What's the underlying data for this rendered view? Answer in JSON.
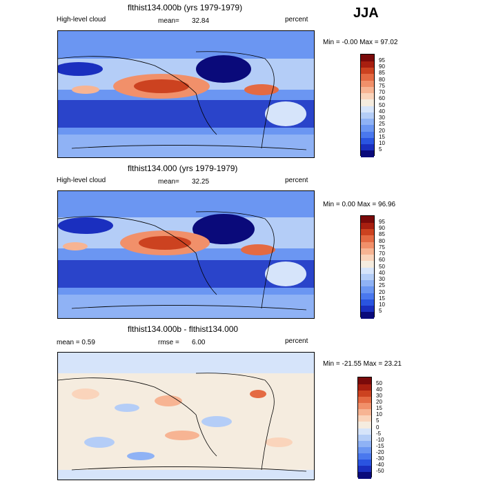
{
  "season": "JJA",
  "panels": [
    {
      "id": "p1",
      "title": "flthist134.000b (yrs 1979-1979)",
      "left_label": "High-level cloud",
      "mean_label": "mean=",
      "mean_value": "32.84",
      "units": "percent",
      "range_text": "Min =   -0.00 Max =   97.02"
    },
    {
      "id": "p2",
      "title": "flthist134.000 (yrs 1979-1979)",
      "left_label": "High-level cloud",
      "mean_label": "mean=",
      "mean_value": "32.25",
      "units": "percent",
      "range_text": "Min =    0.00 Max =   96.96"
    },
    {
      "id": "p3",
      "title": "flthist134.000b - flthist134.000",
      "left_label": "mean =    0.59",
      "mean_label": "rmse =",
      "mean_value": "6.00",
      "units": "percent",
      "range_text": "Min = -21.55 Max =   23.21"
    }
  ],
  "chart_data": [
    {
      "type": "heatmap",
      "title": "flthist134.000b (yrs 1979-1979)",
      "variable": "High-level cloud",
      "units": "percent",
      "mean": 32.84,
      "min": -0.0,
      "max": 97.02,
      "levels": [
        5,
        10,
        15,
        20,
        25,
        30,
        40,
        50,
        60,
        70,
        75,
        80,
        85,
        90,
        95
      ],
      "colors": [
        "#0a0a7a",
        "#1a2fbf",
        "#2a54e0",
        "#4a78ee",
        "#6b96f2",
        "#8fb2f5",
        "#b4cdf7",
        "#d6e4fa",
        "#f5ecdf",
        "#fad4bb",
        "#f7b493",
        "#f1906a",
        "#e46a43",
        "#cc4220",
        "#a81f10",
        "#7a0a0a"
      ]
    },
    {
      "type": "heatmap",
      "title": "flthist134.000 (yrs 1979-1979)",
      "variable": "High-level cloud",
      "units": "percent",
      "mean": 32.25,
      "min": 0.0,
      "max": 96.96,
      "levels": [
        5,
        10,
        15,
        20,
        25,
        30,
        40,
        50,
        60,
        70,
        75,
        80,
        85,
        90,
        95
      ],
      "colors": [
        "#0a0a7a",
        "#1a2fbf",
        "#2a54e0",
        "#4a78ee",
        "#6b96f2",
        "#8fb2f5",
        "#b4cdf7",
        "#d6e4fa",
        "#f5ecdf",
        "#fad4bb",
        "#f7b493",
        "#f1906a",
        "#e46a43",
        "#cc4220",
        "#a81f10",
        "#7a0a0a"
      ]
    },
    {
      "type": "heatmap",
      "title": "flthist134.000b - flthist134.000",
      "units": "percent",
      "mean": 0.59,
      "rmse": 6.0,
      "min": -21.55,
      "max": 23.21,
      "levels": [
        -50,
        -40,
        -30,
        -20,
        -15,
        -10,
        -5,
        0,
        5,
        10,
        15,
        20,
        30,
        40,
        50
      ],
      "colors": [
        "#0a0a7a",
        "#1a2fbf",
        "#2a54e0",
        "#4a78ee",
        "#6b96f2",
        "#8fb2f5",
        "#b4cdf7",
        "#d6e4fa",
        "#f5ecdf",
        "#fad4bb",
        "#f7b493",
        "#f1906a",
        "#e46a43",
        "#cc4220",
        "#a81f10",
        "#7a0a0a"
      ]
    }
  ]
}
